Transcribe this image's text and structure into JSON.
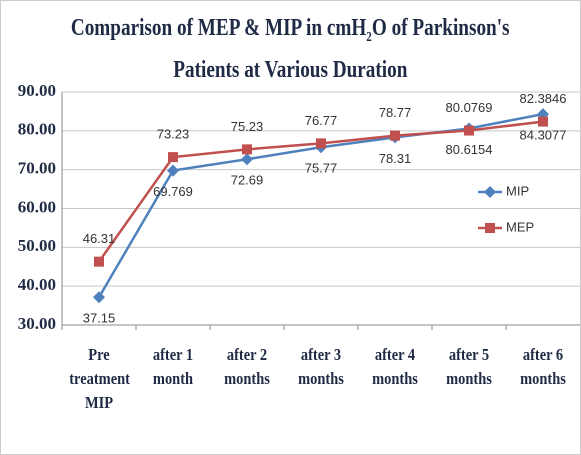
{
  "chart_data": {
    "type": "line",
    "title_parts": [
      "Comparison of MEP & MIP in cmH",
      "2",
      "O of Parkinson's",
      "Patients at Various Duration"
    ],
    "categories": [
      "Pre treatment MIP",
      "after 1 month",
      "after 2 months",
      "after 3 months",
      "after 4 months",
      "after 5 months",
      "after 6 months"
    ],
    "series": [
      {
        "name": "MIP",
        "color": "#4f81bd",
        "marker": "diamond",
        "values": [
          37.15,
          69.769,
          72.69,
          75.77,
          78.31,
          80.6154,
          84.3077
        ]
      },
      {
        "name": "MEP",
        "color": "#c0504d",
        "marker": "square",
        "values": [
          46.31,
          73.23,
          75.23,
          76.77,
          78.77,
          80.0769,
          82.3846
        ]
      }
    ],
    "ylim": [
      30,
      90
    ],
    "yticks": [
      {
        "value": 30,
        "label": "30.00"
      },
      {
        "value": 40,
        "label": "40.00"
      },
      {
        "value": 50,
        "label": "50.00"
      },
      {
        "value": 60,
        "label": "60.00"
      },
      {
        "value": 70,
        "label": "70.00"
      },
      {
        "value": 80,
        "label": "80.00"
      },
      {
        "value": 90,
        "label": "90.00"
      }
    ],
    "grid": true,
    "legend": "right"
  }
}
